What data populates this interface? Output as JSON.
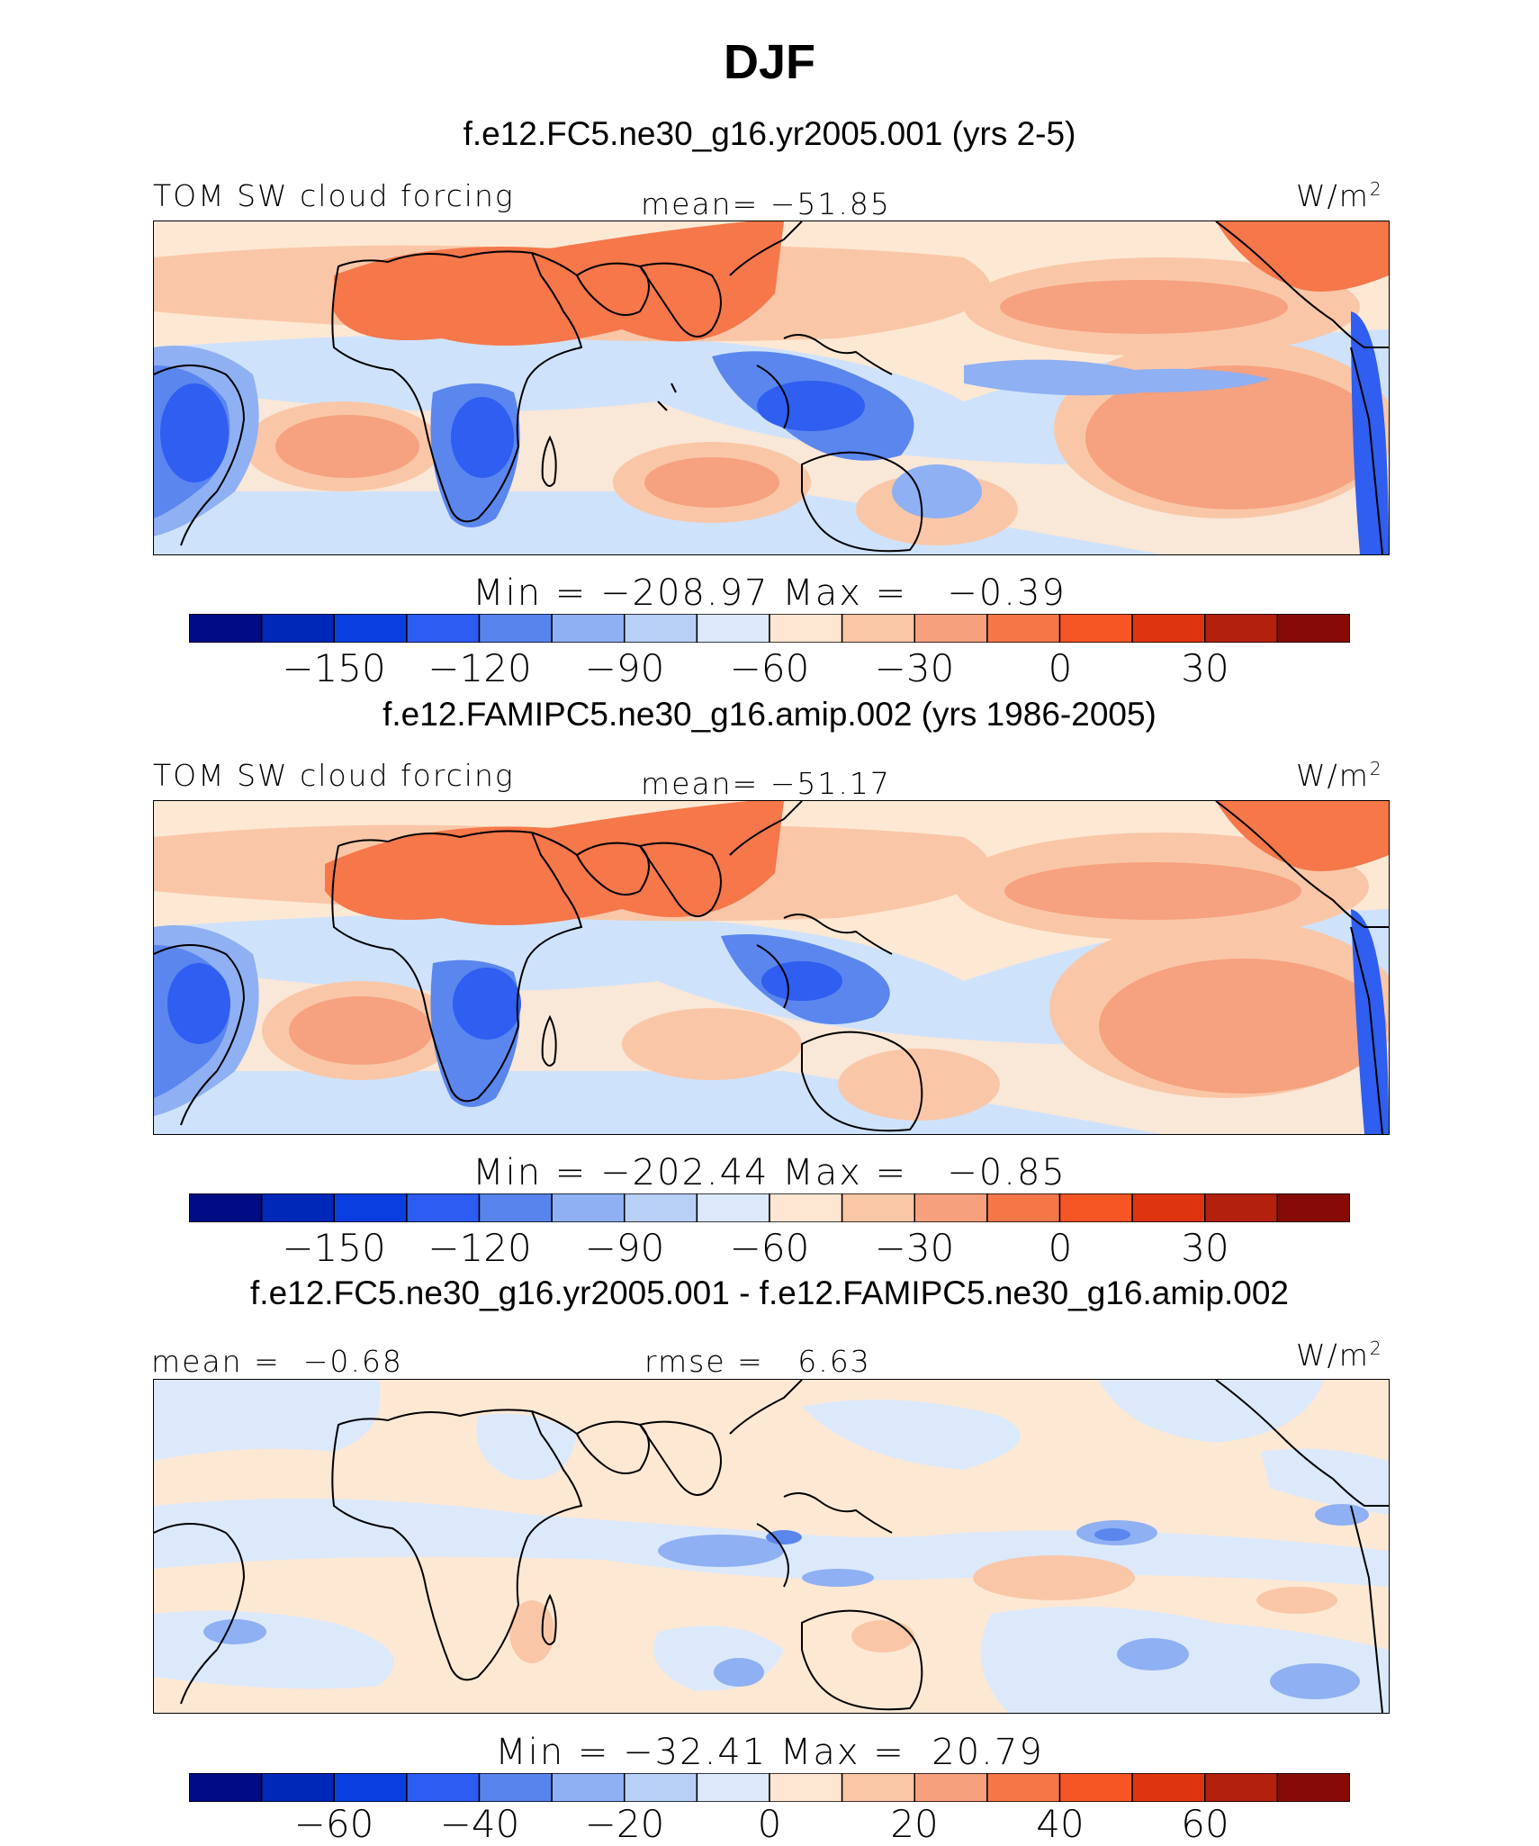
{
  "title": "DJF",
  "panels": [
    {
      "case_title": "f.e12.FC5.ne30_g16.yr2005.001 (yrs 2-5)",
      "left_label": "TOM SW cloud forcing",
      "center_label": "mean= −51.85",
      "units": "W/m",
      "units_exp": "2",
      "minmax": "Min = −208.97 Max =   −0.39",
      "colorbar_ticks": [
        "−150",
        "−120",
        "−90",
        "−60",
        "−30",
        "0",
        "30"
      ],
      "field": "model"
    },
    {
      "case_title": "f.e12.FAMIPC5.ne30_g16.amip.002 (yrs 1986-2005)",
      "left_label": "TOM SW cloud forcing",
      "center_label": "mean= −51.17",
      "units": "W/m",
      "units_exp": "2",
      "minmax": "Min = −202.44 Max =   −0.85",
      "colorbar_ticks": [
        "−150",
        "−120",
        "−90",
        "−60",
        "−30",
        "0",
        "30"
      ],
      "field": "control"
    },
    {
      "case_title": "f.e12.FC5.ne30_g16.yr2005.001 - f.e12.FAMIPC5.ne30_g16.amip.002",
      "left_label": "mean =  −0.68",
      "center_label": "rmse =   6.63",
      "units": "W/m",
      "units_exp": "2",
      "minmax": "Min = −32.41 Max =  20.79",
      "colorbar_ticks": [
        "−60",
        "−40",
        "−20",
        "0",
        "20",
        "40",
        "60"
      ],
      "field": "difference"
    }
  ],
  "colorbar_colors": [
    "#000b84",
    "#0028b8",
    "#0a3ee0",
    "#2d5cf2",
    "#5884ee",
    "#8fb0f2",
    "#b8cff6",
    "#dce9fb",
    "#fde7d3",
    "#f9c6a6",
    "#f6a07e",
    "#f57748",
    "#f65524",
    "#de3410",
    "#b3200e",
    "#860b06"
  ],
  "map_palette": {
    "deep_blue": "#2f5ef0",
    "blue": "#5a86ee",
    "mid_blue": "#8fb0f2",
    "light_blue": "#cfe2fb",
    "cream": "#fde8d4",
    "peach": "#f9c7a7",
    "salmon": "#f6a17f",
    "orange": "#f5774a"
  }
}
